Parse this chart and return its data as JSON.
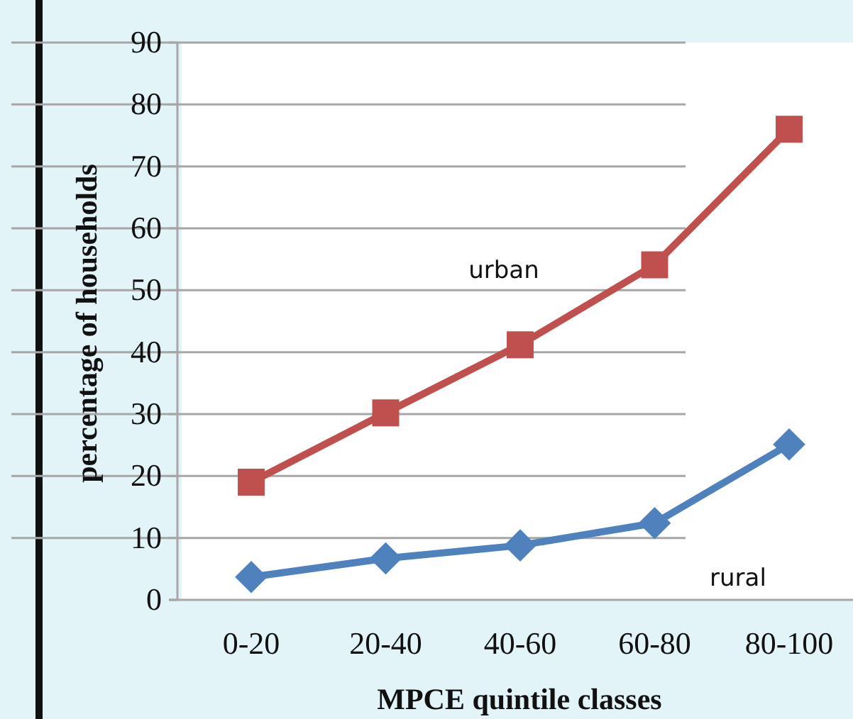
{
  "chart_data": {
    "type": "line",
    "xlabel": "MPCE quintile classes",
    "ylabel": "percentage of households",
    "categories": [
      "0-20",
      "20-40",
      "40-60",
      "60-80",
      "80-100"
    ],
    "series": [
      {
        "name": "rural",
        "color": "#4f81bd",
        "marker": "diamond",
        "values": [
          3.7,
          6.7,
          8.8,
          12.4,
          25.1
        ]
      },
      {
        "name": "urban",
        "color": "#c0504d",
        "marker": "square",
        "values": [
          19,
          30.2,
          41.2,
          54.1,
          76
        ]
      }
    ],
    "ylim": [
      0,
      90
    ],
    "yticks": [
      0,
      10,
      20,
      30,
      40,
      50,
      60,
      70,
      80,
      90
    ],
    "grid": "y"
  }
}
